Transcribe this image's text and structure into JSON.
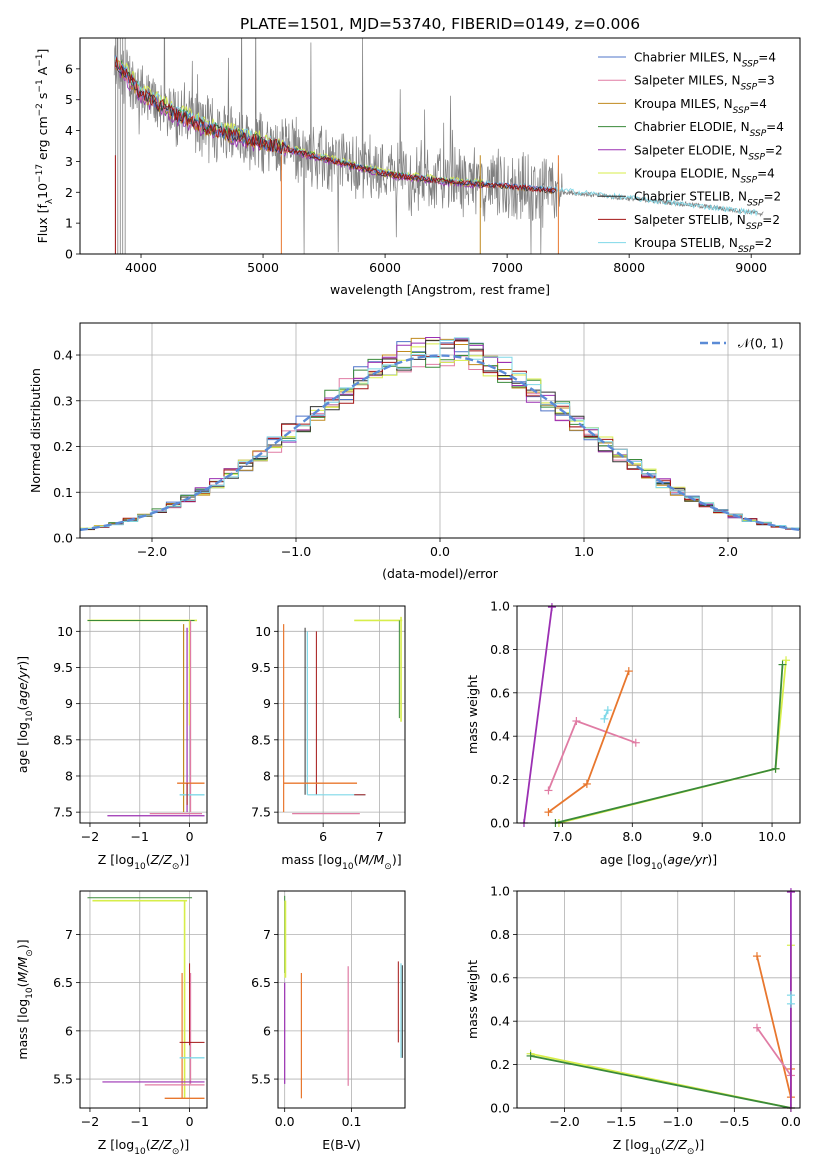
{
  "figure": {
    "title": "PLATE=1501, MJD=53740, FIBERID=0149, z=0.006"
  },
  "colors": {
    "Chabrier MILES": "#4f74c8",
    "Salpeter MILES": "#e07ca4",
    "Kroupa MILES": "#c08a1e",
    "Chabrier ELODIE": "#3a8a3a",
    "Salpeter ELODIE": "#9b30b3",
    "Kroupa ELODIE": "#d7ee4a",
    "Chabrier STELIB": "#333333",
    "Salpeter STELIB": "#a31515",
    "Kroupa STELIB": "#7fd8e8",
    "data": "#808080",
    "normal_curve": "#5b8bd6",
    "orange_extra": "#e8772e"
  },
  "chart_data": [
    {
      "id": "spectrum",
      "type": "line",
      "title": "PLATE=1501, MJD=53740, FIBERID=0149, z=0.006",
      "xlabel": "wavelength [Angstrom, rest frame]",
      "ylabel": "Flux [f_λ 10^-17 erg cm^-2 s^-1 A^-1]",
      "xlim": [
        3500,
        9400
      ],
      "ylim": [
        0,
        7
      ],
      "xticks": [
        4000,
        5000,
        6000,
        7000,
        8000,
        9000
      ],
      "yticks": [
        0,
        1,
        2,
        3,
        4,
        5,
        6
      ],
      "legend_position": "right",
      "legend": [
        {
          "name": "Chabrier MILES",
          "nssp": "4"
        },
        {
          "name": "Salpeter MILES",
          "nssp": "3"
        },
        {
          "name": "Kroupa MILES",
          "nssp": "4"
        },
        {
          "name": "Chabrier ELODIE",
          "nssp": "4"
        },
        {
          "name": "Salpeter ELODIE",
          "nssp": "2"
        },
        {
          "name": "Kroupa ELODIE",
          "nssp": "4"
        },
        {
          "name": "Chabrier STELIB",
          "nssp": "2"
        },
        {
          "name": "Salpeter STELIB",
          "nssp": "2"
        },
        {
          "name": "Kroupa STELIB",
          "nssp": "2"
        }
      ],
      "data_trend": {
        "x": [
          3800,
          4000,
          4200,
          4500,
          5000,
          5500,
          6000,
          6500,
          7000,
          7500,
          8000,
          8500,
          9000,
          9100
        ],
        "y": [
          6.2,
          5.2,
          4.7,
          4.2,
          3.6,
          3.1,
          2.7,
          2.45,
          2.2,
          2.0,
          1.8,
          1.6,
          1.35,
          1.3
        ]
      },
      "model_trend": {
        "x": [
          3800,
          4000,
          4300,
          4600,
          5000,
          5500,
          6000,
          6500,
          7000,
          7400
        ],
        "y": [
          6.2,
          5.2,
          4.5,
          4.0,
          3.6,
          3.1,
          2.6,
          2.35,
          2.2,
          2.05
        ]
      }
    },
    {
      "id": "residuals",
      "type": "line",
      "xlabel": "(data-model)/error",
      "ylabel": "Normed distribution",
      "xlim": [
        -2.5,
        2.5
      ],
      "ylim": [
        0,
        0.47
      ],
      "xticks": [
        -2,
        -1,
        0,
        1,
        2
      ],
      "yticks": [
        0.0,
        0.1,
        0.2,
        0.3,
        0.4
      ],
      "legend": [
        "𝒩(0, 1)"
      ],
      "grid": true,
      "normal_curve": {
        "mu": 0,
        "sigma": 1
      }
    },
    {
      "id": "age_vs_Z",
      "type": "scatter",
      "xlabel": "Z [log10(Z/Z⊙)]",
      "ylabel": "age  [log10(age/yr)]",
      "xlim": [
        -2.2,
        0.35
      ],
      "ylim": [
        7.35,
        10.35
      ],
      "xticks": [
        -2,
        -1,
        0
      ],
      "yticks": [
        7.5,
        8.0,
        8.5,
        9.0,
        9.5,
        10.0
      ],
      "grid": true
    },
    {
      "id": "age_vs_mass",
      "type": "scatter",
      "xlabel": "mass [log10(M/M⊙)]",
      "xlim": [
        5.2,
        7.45
      ],
      "ylim": [
        7.35,
        10.35
      ],
      "xticks": [
        6,
        7
      ],
      "yticks": [
        7.5,
        8.0,
        8.5,
        9.0,
        9.5,
        10.0
      ],
      "grid": true
    },
    {
      "id": "weight_vs_age",
      "type": "line",
      "xlabel": "age  [log10(age/yr)]",
      "ylabel": "mass weight",
      "xlim": [
        6.35,
        10.4
      ],
      "ylim": [
        0,
        1
      ],
      "xticks": [
        7,
        8,
        9,
        10
      ],
      "yticks": [
        0.0,
        0.2,
        0.4,
        0.6,
        0.8,
        1.0
      ],
      "grid": true,
      "series": [
        {
          "name": "Salpeter ELODIE",
          "x": [
            6.45,
            6.85
          ],
          "y": [
            0.0,
            0.995
          ]
        },
        {
          "name": "Salpeter MILES",
          "x": [
            6.8,
            7.2,
            8.05
          ],
          "y": [
            0.15,
            0.47,
            0.37
          ]
        },
        {
          "name": "Kroupa MILES",
          "x": [
            6.8,
            7.35,
            7.95
          ],
          "y": [
            0.05,
            0.18,
            0.7
          ]
        },
        {
          "name": "Kroupa STELIB",
          "x": [
            7.6,
            7.65
          ],
          "y": [
            0.48,
            0.52
          ]
        },
        {
          "name": "Kroupa ELODIE",
          "x": [
            6.95,
            10.05,
            10.2
          ],
          "y": [
            0.0,
            0.25,
            0.75
          ]
        },
        {
          "name": "Chabrier ELODIE",
          "x": [
            6.9,
            10.05,
            10.15
          ],
          "y": [
            0.0,
            0.25,
            0.73
          ]
        }
      ]
    },
    {
      "id": "mass_vs_Z",
      "type": "scatter",
      "xlabel": "Z [log10(Z/Z⊙)]",
      "ylabel": "mass [log10(M/M⊙)]",
      "xlim": [
        -2.2,
        0.35
      ],
      "ylim": [
        5.2,
        7.45
      ],
      "xticks": [
        -2,
        -1,
        0
      ],
      "yticks": [
        5.5,
        6.0,
        6.5,
        7.0
      ],
      "grid": true
    },
    {
      "id": "mass_vs_EBV",
      "type": "scatter",
      "xlabel": "E(B-V)",
      "xlim": [
        -0.01,
        0.18
      ],
      "ylim": [
        5.2,
        7.45
      ],
      "xticks": [
        0.0,
        0.1
      ],
      "yticks": [
        5.5,
        6.0,
        6.5,
        7.0
      ],
      "grid": true
    },
    {
      "id": "weight_vs_Z",
      "type": "line",
      "xlabel": "Z [log10(Z/Z⊙)]",
      "ylabel": "mass weight",
      "xlim": [
        -2.42,
        0.08
      ],
      "ylim": [
        0,
        1
      ],
      "xticks": [
        -2.0,
        -1.5,
        -1.0,
        -0.5,
        0.0
      ],
      "yticks": [
        0.0,
        0.2,
        0.4,
        0.6,
        0.8,
        1.0
      ],
      "grid": true,
      "series": [
        {
          "name": "Kroupa ELODIE",
          "x": [
            -2.3,
            0.0,
            0.0
          ],
          "y": [
            0.25,
            0.0,
            0.75
          ]
        },
        {
          "name": "Chabrier ELODIE",
          "x": [
            -2.3,
            0.0
          ],
          "y": [
            0.24,
            0.0
          ]
        },
        {
          "name": "Kroupa MILES",
          "x": [
            -0.3,
            0.0,
            0.0
          ],
          "y": [
            0.7,
            0.05,
            0.18
          ]
        },
        {
          "name": "Salpeter MILES",
          "x": [
            -0.3,
            0.0
          ],
          "y": [
            0.37,
            0.15
          ]
        },
        {
          "name": "Salpeter ELODIE",
          "x": [
            0.0,
            0.0
          ],
          "y": [
            0.0,
            0.995
          ]
        },
        {
          "name": "Kroupa STELIB",
          "x": [
            0.0,
            0.0
          ],
          "y": [
            0.48,
            0.52
          ]
        }
      ]
    }
  ]
}
